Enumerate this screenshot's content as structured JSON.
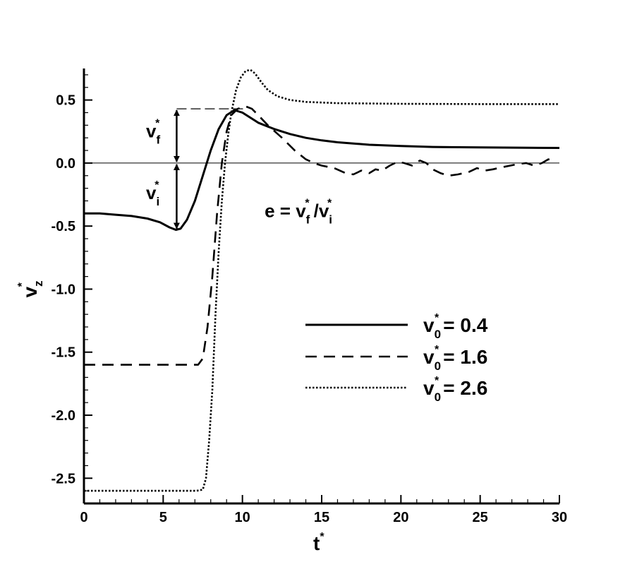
{
  "chart_data": {
    "type": "line",
    "title": "",
    "xlabel": {
      "base": "t",
      "sup": "*"
    },
    "ylabel": {
      "base": "v",
      "sup": "*",
      "sub": "z"
    },
    "xlim": [
      0,
      30
    ],
    "ylim": [
      -2.7,
      0.75
    ],
    "xticks": [
      0,
      5,
      10,
      15,
      20,
      25,
      30
    ],
    "xtick_labels": [
      "0",
      "5",
      "10",
      "15",
      "20",
      "25",
      "30"
    ],
    "yticks": [
      -2.5,
      -2.0,
      -1.5,
      -1.0,
      -0.5,
      0.0,
      0.5
    ],
    "ytick_labels": [
      "-2.5",
      "-2.0",
      "-1.5",
      "-1.0",
      "-0.5",
      "0.0",
      "0.5"
    ],
    "grid": false,
    "legend_position": "right-middle",
    "zero_line": true,
    "series": [
      {
        "name": "0.4",
        "legend": {
          "base": "v",
          "sup": "*",
          "sub": "0",
          "rest": "= 0.4"
        },
        "style": "solid",
        "color": "#000000",
        "points": [
          [
            0,
            -0.4
          ],
          [
            1,
            -0.4
          ],
          [
            2,
            -0.41
          ],
          [
            3,
            -0.42
          ],
          [
            4,
            -0.44
          ],
          [
            4.8,
            -0.47
          ],
          [
            5.4,
            -0.51
          ],
          [
            5.8,
            -0.53
          ],
          [
            6.1,
            -0.52
          ],
          [
            6.5,
            -0.45
          ],
          [
            7,
            -0.3
          ],
          [
            7.5,
            -0.1
          ],
          [
            8,
            0.1
          ],
          [
            8.5,
            0.27
          ],
          [
            9,
            0.38
          ],
          [
            9.5,
            0.42
          ],
          [
            10,
            0.4
          ],
          [
            10.5,
            0.36
          ],
          [
            11,
            0.32
          ],
          [
            12,
            0.27
          ],
          [
            13,
            0.23
          ],
          [
            14,
            0.2
          ],
          [
            15,
            0.18
          ],
          [
            16,
            0.165
          ],
          [
            18,
            0.145
          ],
          [
            20,
            0.135
          ],
          [
            22,
            0.128
          ],
          [
            25,
            0.124
          ],
          [
            28,
            0.121
          ],
          [
            30,
            0.12
          ]
        ]
      },
      {
        "name": "1.6",
        "legend": {
          "base": "v",
          "sup": "*",
          "sub": "0",
          "rest": "= 1.6"
        },
        "style": "dashed",
        "color": "#000000",
        "points": [
          [
            0,
            -1.6
          ],
          [
            3,
            -1.6
          ],
          [
            5,
            -1.6
          ],
          [
            6.5,
            -1.6
          ],
          [
            7.2,
            -1.6
          ],
          [
            7.5,
            -1.55
          ],
          [
            7.8,
            -1.3
          ],
          [
            8.1,
            -0.9
          ],
          [
            8.4,
            -0.4
          ],
          [
            8.7,
            0.0
          ],
          [
            9,
            0.25
          ],
          [
            9.3,
            0.38
          ],
          [
            9.7,
            0.43
          ],
          [
            10.2,
            0.45
          ],
          [
            10.6,
            0.43
          ],
          [
            11,
            0.38
          ],
          [
            11.6,
            0.3
          ],
          [
            12.5,
            0.2
          ],
          [
            13.3,
            0.1
          ],
          [
            14,
            0.03
          ],
          [
            14.5,
            0.0
          ],
          [
            15,
            -0.02
          ],
          [
            15.8,
            -0.04
          ],
          [
            16.5,
            -0.08
          ],
          [
            17,
            -0.09
          ],
          [
            17.5,
            -0.06
          ],
          [
            18,
            -0.08
          ],
          [
            18.4,
            -0.05
          ],
          [
            18.8,
            -0.06
          ],
          [
            19.3,
            -0.02
          ],
          [
            19.8,
            0.01
          ],
          [
            20.2,
            0.0
          ],
          [
            20.7,
            -0.02
          ],
          [
            21.2,
            0.02
          ],
          [
            21.6,
            0.0
          ],
          [
            22,
            -0.05
          ],
          [
            22.5,
            -0.08
          ],
          [
            23,
            -0.1
          ],
          [
            23.6,
            -0.09
          ],
          [
            24.3,
            -0.07
          ],
          [
            24.8,
            -0.04
          ],
          [
            25.3,
            -0.06
          ],
          [
            25.8,
            -0.05
          ],
          [
            26.5,
            -0.03
          ],
          [
            27.3,
            -0.01
          ],
          [
            27.9,
            0.0
          ],
          [
            28.4,
            -0.02
          ],
          [
            28.9,
            0.0
          ],
          [
            29.3,
            0.03
          ],
          [
            29.6,
            0.02
          ]
        ]
      },
      {
        "name": "2.6",
        "legend": {
          "base": "v",
          "sup": "*",
          "sub": "0",
          "rest": "= 2.6"
        },
        "style": "dotted",
        "color": "#000000",
        "points": [
          [
            0,
            -2.6
          ],
          [
            3,
            -2.6
          ],
          [
            6,
            -2.6
          ],
          [
            7.1,
            -2.6
          ],
          [
            7.5,
            -2.59
          ],
          [
            7.7,
            -2.5
          ],
          [
            7.9,
            -2.2
          ],
          [
            8.1,
            -1.8
          ],
          [
            8.3,
            -1.2
          ],
          [
            8.5,
            -0.7
          ],
          [
            8.7,
            -0.3
          ],
          [
            8.9,
            0.0
          ],
          [
            9.1,
            0.22
          ],
          [
            9.3,
            0.4
          ],
          [
            9.6,
            0.58
          ],
          [
            9.9,
            0.68
          ],
          [
            10.2,
            0.73
          ],
          [
            10.5,
            0.74
          ],
          [
            10.8,
            0.71
          ],
          [
            11.2,
            0.64
          ],
          [
            11.6,
            0.58
          ],
          [
            12.2,
            0.53
          ],
          [
            13,
            0.5
          ],
          [
            14,
            0.485
          ],
          [
            16,
            0.475
          ],
          [
            20,
            0.47
          ],
          [
            25,
            0.468
          ],
          [
            30,
            0.468
          ]
        ]
      }
    ],
    "annotations": {
      "vf_label": {
        "base": "v",
        "sup": "*",
        "sub": "f"
      },
      "vi_label": {
        "base": "v",
        "sup": "*",
        "sub": "i"
      },
      "arrow_x": 5.85,
      "vi_value": -0.53,
      "vf_value": 0.43,
      "dashed_ref": {
        "x_from": 5.85,
        "x_to": 10.3,
        "y": 0.43
      },
      "equation": {
        "text_e": "e =",
        "num": {
          "base": "v",
          "sup": "*",
          "sub": "f"
        },
        "slash": "/",
        "den": {
          "base": "v",
          "sup": "*",
          "sub": "i"
        },
        "x": 11.4,
        "y": -0.43
      }
    }
  }
}
